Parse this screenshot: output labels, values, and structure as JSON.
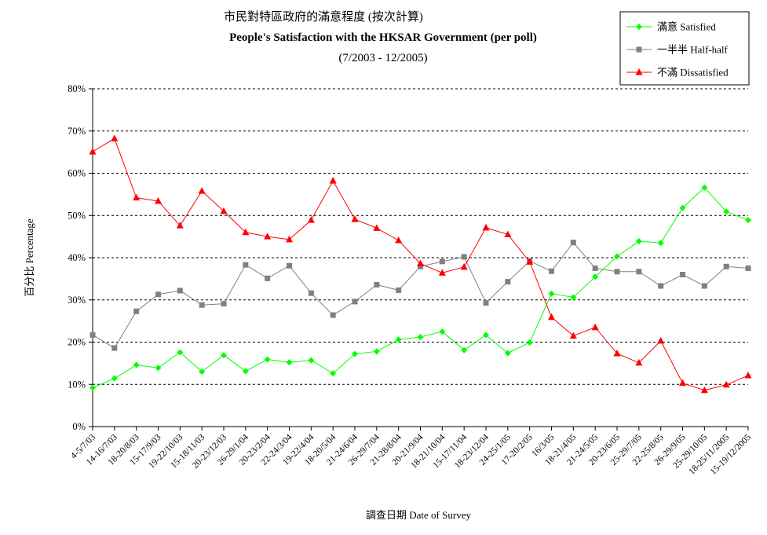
{
  "chart_data": {
    "type": "line",
    "title": "市民對特區政府的滿意程度 (按次計算)",
    "subtitle": "People's Satisfaction with the HKSAR Government (per poll)",
    "period": "(7/2003 - 12/2005)",
    "xlabel": "調查日期 Date of Survey",
    "ylabel": "百分比 Percentage",
    "ylim": [
      0,
      80
    ],
    "yticks": [
      "0%",
      "10%",
      "20%",
      "30%",
      "40%",
      "50%",
      "60%",
      "70%",
      "80%"
    ],
    "grid": "horizontal dashed",
    "legend_position": "top-right",
    "categories": [
      "4-5/7/03",
      "14-16/7/03",
      "18-20/8/03",
      "15-17/9/03",
      "19-22/10/03",
      "15-18/11/03",
      "20-23/12/03",
      "26-29/1/04",
      "20-23/2/04",
      "22-24/3/04",
      "19-22/4/04",
      "18-20/5/04",
      "21-24/6/04",
      "26-29/7/04",
      "21-28/8/04",
      "20-21/9/04",
      "18-21/10/04",
      "15-17/11/04",
      "18-23/12/04",
      "24-25/1/05",
      "17-20/2/05",
      "16/3/05",
      "18-21/4/05",
      "21-24/5/05",
      "20-23/6/05",
      "25-29/7/05",
      "22-25/8/05",
      "26-29/9/05",
      "25-29/10/05",
      "18-25/11/2005",
      "15-19/12/2005"
    ],
    "series": [
      {
        "name": "滿意 Satisfied",
        "color": "#00ff00",
        "marker": "diamond",
        "values": [
          9.2,
          11.4,
          14.6,
          13.9,
          17.6,
          13.0,
          16.9,
          13.1,
          15.9,
          15.2,
          15.7,
          12.6,
          17.2,
          17.8,
          20.6,
          21.2,
          22.5,
          18.1,
          21.7,
          17.4,
          19.9,
          31.5,
          30.6,
          35.5,
          40.3,
          43.9,
          43.5,
          51.8,
          56.6,
          50.9,
          48.9
        ]
      },
      {
        "name": "一半半 Half-half",
        "color": "#808080",
        "marker": "square",
        "values": [
          21.7,
          18.6,
          27.3,
          31.3,
          32.2,
          28.8,
          29.1,
          38.3,
          35.1,
          38.1,
          31.6,
          26.4,
          29.6,
          33.6,
          32.3,
          37.9,
          39.1,
          40.2,
          29.3,
          34.3,
          39.2,
          36.8,
          43.6,
          37.5,
          36.7,
          36.7,
          33.3,
          36.0,
          33.3,
          37.9,
          37.5
        ]
      },
      {
        "name": "不滿 Dissatisfied",
        "color": "#ff0000",
        "marker": "triangle",
        "values": [
          65.1,
          68.2,
          54.2,
          53.4,
          47.6,
          55.8,
          51.0,
          46.0,
          45.0,
          44.3,
          48.9,
          58.2,
          49.1,
          47.0,
          44.1,
          38.6,
          36.4,
          37.8,
          47.1,
          45.5,
          39.0,
          25.9,
          21.5,
          23.5,
          17.3,
          15.1,
          20.3,
          10.3,
          8.6,
          9.9,
          12.1
        ]
      }
    ]
  }
}
